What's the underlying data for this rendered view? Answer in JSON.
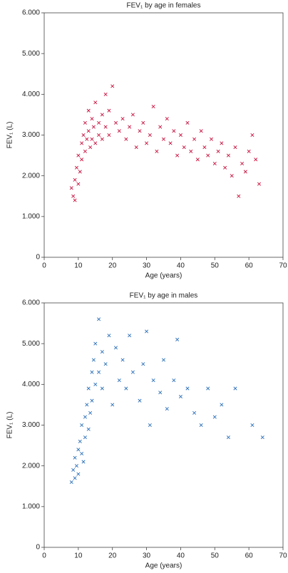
{
  "chart_data": [
    {
      "type": "scatter",
      "title": "FEV₁ by age in females",
      "x_label": "Age (years)",
      "y_label": "FEV₁ (L)",
      "xlim": [
        0,
        70
      ],
      "xticks": [
        0,
        10,
        20,
        30,
        40,
        50,
        60,
        70
      ],
      "ylim": [
        0,
        6
      ],
      "yticks": [
        0,
        {
          "value": 1,
          "label": "1.000"
        },
        {
          "value": 2,
          "label": "2.000"
        },
        {
          "value": 3,
          "label": "3.000"
        },
        {
          "value": 4,
          "label": "4.000"
        },
        {
          "value": 5,
          "label": "5.000"
        },
        {
          "value": 6,
          "label": "6.000"
        }
      ],
      "color": "#c8103e",
      "x": [
        8,
        8.5,
        9,
        9,
        9.5,
        10,
        10,
        10.5,
        11,
        11,
        11.5,
        12,
        12,
        12.5,
        13,
        13,
        13.5,
        14,
        14,
        14.5,
        15,
        15,
        16,
        16,
        17,
        17,
        18,
        18,
        19,
        19,
        20,
        21,
        22,
        23,
        24,
        25,
        26,
        27,
        28,
        29,
        30,
        31,
        32,
        33,
        34,
        35,
        36,
        37,
        38,
        39,
        40,
        41,
        42,
        43,
        44,
        45,
        46,
        47,
        48,
        49,
        50,
        51,
        52,
        53,
        54,
        55,
        56,
        57,
        58,
        59,
        60,
        61,
        62,
        63
      ],
      "y": [
        1.7,
        1.5,
        1.9,
        1.4,
        2.2,
        1.8,
        2.5,
        2.1,
        2.8,
        2.4,
        3.0,
        2.6,
        3.3,
        2.9,
        3.6,
        3.1,
        2.7,
        3.4,
        2.9,
        3.2,
        3.8,
        2.8,
        3.3,
        3.0,
        3.5,
        2.9,
        4.0,
        3.2,
        3.6,
        3.0,
        4.2,
        3.3,
        3.1,
        3.4,
        2.9,
        3.2,
        3.5,
        2.7,
        3.1,
        3.3,
        2.8,
        3.0,
        3.7,
        2.6,
        3.2,
        2.9,
        3.4,
        2.8,
        3.1,
        2.5,
        3.0,
        2.7,
        3.3,
        2.6,
        2.9,
        2.4,
        3.1,
        2.7,
        2.5,
        2.9,
        2.3,
        2.6,
        2.8,
        2.2,
        2.5,
        2.0,
        2.7,
        1.5,
        2.3,
        2.1,
        2.6,
        3.0,
        2.4,
        1.8
      ]
    },
    {
      "type": "scatter",
      "title": "FEV₁ by age in males",
      "x_label": "Age (years)",
      "y_label": "FEV₁ (L)",
      "xlim": [
        0,
        70
      ],
      "xticks": [
        0,
        10,
        20,
        30,
        40,
        50,
        60,
        70
      ],
      "ylim": [
        0,
        6
      ],
      "yticks": [
        0,
        {
          "value": 1,
          "label": "1.000"
        },
        {
          "value": 2,
          "label": "2.000"
        },
        {
          "value": 3,
          "label": "3.000"
        },
        {
          "value": 4,
          "label": "4.000"
        },
        {
          "value": 5,
          "label": "5.000"
        },
        {
          "value": 6,
          "label": "6.000"
        }
      ],
      "color": "#2a6fb8",
      "x": [
        8,
        8.5,
        9,
        9,
        9.5,
        10,
        10,
        10.5,
        11,
        11,
        11.5,
        12,
        12,
        12.5,
        13,
        13,
        13.5,
        14,
        14,
        14.5,
        15,
        15,
        16,
        16,
        17,
        17,
        18,
        19,
        20,
        21,
        22,
        23,
        24,
        25,
        26,
        28,
        29,
        30,
        31,
        32,
        34,
        35,
        36,
        38,
        39,
        40,
        42,
        44,
        46,
        48,
        50,
        52,
        54,
        56,
        61,
        64
      ],
      "y": [
        1.6,
        1.9,
        1.7,
        2.2,
        2.0,
        2.4,
        1.8,
        2.6,
        2.3,
        3.0,
        2.1,
        3.2,
        2.7,
        3.5,
        2.9,
        3.9,
        3.3,
        4.3,
        3.6,
        4.6,
        4.0,
        5.0,
        5.6,
        4.3,
        4.8,
        3.9,
        4.5,
        5.2,
        3.5,
        4.9,
        4.1,
        4.6,
        3.9,
        5.2,
        4.3,
        3.6,
        4.5,
        5.3,
        3.0,
        4.1,
        3.8,
        4.6,
        3.4,
        4.1,
        5.1,
        3.7,
        3.9,
        3.3,
        3.0,
        3.9,
        3.2,
        3.5,
        2.7,
        3.9,
        3.0,
        2.7
      ]
    }
  ]
}
